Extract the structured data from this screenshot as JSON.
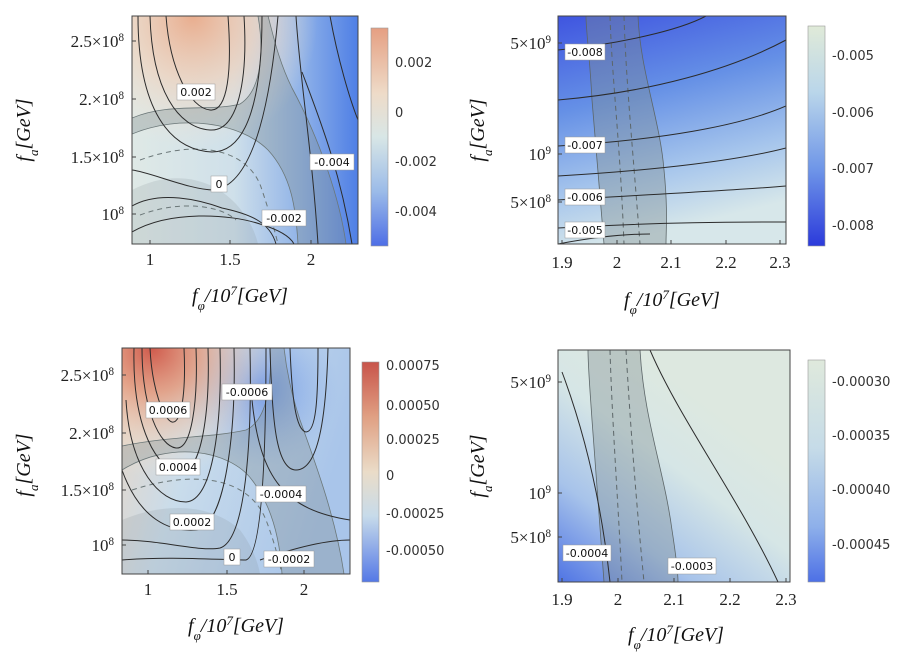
{
  "figure_layout": "2x2 grid of contour density plots",
  "chart_data": [
    {
      "type": "heatmap",
      "panel": "top-left",
      "xlabel": "f_φ/10^7[GeV]",
      "ylabel": "f_a[GeV]",
      "xlim": [
        0.9,
        2.3
      ],
      "ylim": [
        76000000.0,
        272000000.0
      ],
      "xticks": [
        {
          "v": 1,
          "label": "1"
        },
        {
          "v": 1.5,
          "label": "1.5"
        },
        {
          "v": 2,
          "label": "2"
        }
      ],
      "yticks": [
        {
          "v": 100000000.0,
          "label": "10^8"
        },
        {
          "v": 150000000.0,
          "label": "1.5×10^8"
        },
        {
          "v": 200000000.0,
          "label": "2.×10^8"
        },
        {
          "v": 250000000.0,
          "label": "2.5×10^8"
        }
      ],
      "colorbar": {
        "range": [
          -0.0055,
          0.0032
        ],
        "ticks": [
          {
            "v": 0.002,
            "label": "0.002"
          },
          {
            "v": 0,
            "label": "0"
          },
          {
            "v": -0.002,
            "label": "-0.002"
          },
          {
            "v": -0.004,
            "label": "-0.004"
          }
        ]
      },
      "contour_labels": [
        {
          "text": "0.002",
          "x": 1.28,
          "y": 210000000.0
        },
        {
          "text": "0",
          "x": 1.36,
          "y": 126000000.0
        },
        {
          "text": "-0.002",
          "x": 1.84,
          "y": 93000000.0
        },
        {
          "text": "-0.004",
          "x": 2.1,
          "y": 142000000.0
        }
      ]
    },
    {
      "type": "heatmap",
      "panel": "top-right",
      "xlabel": "f_φ/10^7[GeV]",
      "ylabel": "f_a[GeV]",
      "xlim": [
        1.9,
        2.3
      ],
      "ylim": [
        330000000.0,
        6200000000.0
      ],
      "xticks": [
        {
          "v": 1.9,
          "label": "1.9"
        },
        {
          "v": 2.0,
          "label": "2"
        },
        {
          "v": 2.1,
          "label": "2.1"
        },
        {
          "v": 2.2,
          "label": "2.2"
        },
        {
          "v": 2.3,
          "label": "2.3"
        }
      ],
      "yticks": [
        {
          "v": 500000000.0,
          "label": "5×10^8"
        },
        {
          "v": 1000000000.0,
          "label": "10^9"
        },
        {
          "v": 5000000000.0,
          "label": "5×10^9"
        }
      ],
      "colorbar": {
        "range": [
          -0.0084,
          -0.0044
        ],
        "ticks": [
          {
            "v": -0.005,
            "label": "-0.005"
          },
          {
            "v": -0.006,
            "label": "-0.006"
          },
          {
            "v": -0.007,
            "label": "-0.007"
          },
          {
            "v": -0.008,
            "label": "-0.008"
          }
        ]
      },
      "contour_labels": [
        {
          "text": "-0.008",
          "x": 1.918,
          "y": 4300000000.0
        },
        {
          "text": "-0.007",
          "x": 1.918,
          "y": 1130000000.0
        },
        {
          "text": "-0.006",
          "x": 1.918,
          "y": 570000000.0
        },
        {
          "text": "-0.005",
          "x": 1.918,
          "y": 380000000.0
        }
      ]
    },
    {
      "type": "heatmap",
      "panel": "bottom-left",
      "xlabel": "f_φ/10^7[GeV]",
      "ylabel": "f_a[GeV]",
      "xlim": [
        0.9,
        2.3
      ],
      "ylim": [
        76000000.0,
        272000000.0
      ],
      "xticks": [
        {
          "v": 1,
          "label": "1"
        },
        {
          "v": 1.5,
          "label": "1.5"
        },
        {
          "v": 2,
          "label": "2"
        }
      ],
      "yticks": [
        {
          "v": 100000000.0,
          "label": "10^8"
        },
        {
          "v": 150000000.0,
          "label": "1.5×10^8"
        },
        {
          "v": 200000000.0,
          "label": "2.×10^8"
        },
        {
          "v": 250000000.0,
          "label": "2.5×10^8"
        }
      ],
      "colorbar": {
        "range": [
          -0.00062,
          0.00076
        ],
        "ticks": [
          {
            "v": 0.00075,
            "label": "0.00075"
          },
          {
            "v": 0.0005,
            "label": "0.00050"
          },
          {
            "v": 0.00025,
            "label": "0.00025"
          },
          {
            "v": 0,
            "label": "0"
          },
          {
            "v": -0.00025,
            "label": "-0.00025"
          },
          {
            "v": -0.0005,
            "label": "-0.00050"
          }
        ]
      },
      "contour_labels": [
        {
          "text": "0.0006",
          "x": 1.15,
          "y": 220000000.0
        },
        {
          "text": "0.0004",
          "x": 1.16,
          "y": 170000000.0
        },
        {
          "text": "0.0002",
          "x": 1.22,
          "y": 125000000.0
        },
        {
          "text": "0",
          "x": 1.49,
          "y": 89000000.0
        },
        {
          "text": "-0.0006",
          "x": 1.72,
          "y": 242000000.0
        },
        {
          "text": "-0.0004",
          "x": 1.81,
          "y": 146000000.0
        },
        {
          "text": "-0.0002",
          "x": 1.86,
          "y": 88000000.0
        }
      ]
    },
    {
      "type": "heatmap",
      "panel": "bottom-right",
      "xlabel": "f_φ/10^7[GeV]",
      "ylabel": "f_a[GeV]",
      "xlim": [
        1.9,
        2.3
      ],
      "ylim": [
        330000000.0,
        6200000000.0
      ],
      "xticks": [
        {
          "v": 1.9,
          "label": "1.9"
        },
        {
          "v": 2.0,
          "label": "2"
        },
        {
          "v": 2.1,
          "label": "2.1"
        },
        {
          "v": 2.2,
          "label": "2.2"
        },
        {
          "v": 2.3,
          "label": "2.3"
        }
      ],
      "yticks": [
        {
          "v": 500000000.0,
          "label": "5×10^8"
        },
        {
          "v": 1000000000.0,
          "label": "10^9"
        },
        {
          "v": 5000000000.0,
          "label": "5×10^9"
        }
      ],
      "colorbar": {
        "range": [
          -0.000492,
          -0.000282
        ],
        "ticks": [
          {
            "v": -0.0003,
            "label": "-0.00030"
          },
          {
            "v": -0.00035,
            "label": "-0.00035"
          },
          {
            "v": -0.0004,
            "label": "-0.00040"
          },
          {
            "v": -0.00045,
            "label": "-0.00045"
          }
        ]
      },
      "contour_labels": [
        {
          "text": "-0.0004",
          "x": 1.928,
          "y": 430000000.0
        },
        {
          "text": "-0.0003",
          "x": 2.08,
          "y": 375000000.0
        }
      ]
    }
  ]
}
